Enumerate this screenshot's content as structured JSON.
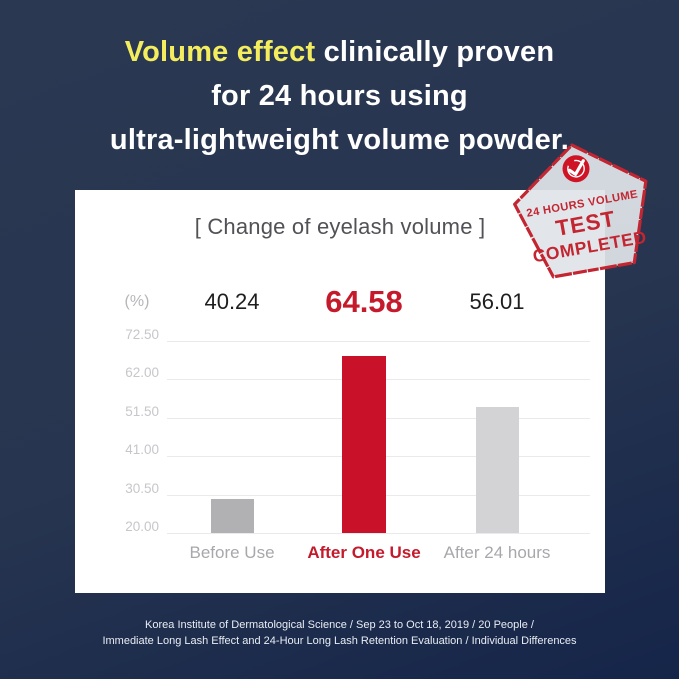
{
  "header": {
    "line1_highlight": "Volume effect",
    "line1_rest": "clinically proven",
    "line2": "for 24 hours using",
    "line3": "ultra-lightweight volume powder."
  },
  "stamp": {
    "line1": "24 HOURS VOLUME",
    "line2": "TEST",
    "line3": "COMPLETED",
    "check_icon": "checkmark-in-circle",
    "fill_color": "rgba(224,228,234,0.93)",
    "border_color": "#c32531"
  },
  "chart_data": {
    "type": "bar",
    "title": "[ Change of eyelash volume ]",
    "unit_label": "(%)",
    "categories": [
      "Before Use",
      "After One Use",
      "After 24 hours"
    ],
    "values": [
      40.24,
      64.58,
      56.01
    ],
    "value_labels": [
      "40.24",
      "64.58",
      "56.01"
    ],
    "highlight_index": 1,
    "y_ticks": [
      "72.50",
      "62.00",
      "51.50",
      "41.00",
      "30.50",
      "20.00"
    ],
    "ylim": [
      20.0,
      72.5
    ],
    "grid": true,
    "legend": "none",
    "bar_visual_tops": [
      29.3,
      68.4,
      54.5
    ],
    "bar_colors": [
      "#b1b1b3",
      "#c9122a",
      "#d3d3d5"
    ],
    "category_colors": [
      "#a8a8ac",
      "#c41a2c",
      "#a8a8ac"
    ]
  },
  "footer": {
    "line1": "Korea Institute of Dermatological Science / Sep 23 to Oct 18, 2019 / 20 People /",
    "line2": "Immediate Long Lash Effect and 24-Hour Long Lash Retention Evaluation / Individual Differences"
  },
  "colors": {
    "bg_light": "#2b3852",
    "bg_mid": "#273550",
    "bg_dark": "#152549",
    "headline_highlight": "#f4ee5f",
    "headline_text": "#ffffff",
    "card_bg": "#ffffff",
    "accent_red": "#c41a2c"
  }
}
